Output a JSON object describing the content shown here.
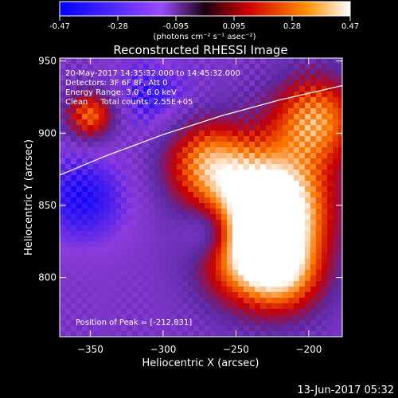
{
  "colorbar": {
    "ticks": [
      "-0.47",
      "-0.28",
      "-0.095",
      "0.095",
      "0.28",
      "0.47"
    ],
    "unit_label": "(photons cm⁻² s⁻¹ asec⁻²)",
    "range": [
      -0.47,
      0.47
    ]
  },
  "chart_data": {
    "type": "heatmap",
    "title": "Reconstructed RHESSI Image",
    "xlabel": "Heliocentric X (arcsec)",
    "ylabel": "Heliocentric Y (arcsec)",
    "xlim": [
      -371,
      -177
    ],
    "ylim": [
      759,
      952
    ],
    "x_ticks": [
      -350,
      -300,
      -250,
      -200
    ],
    "y_ticks": [
      800,
      850,
      900,
      950
    ],
    "info_lines": [
      "20-May-2017 14:35:32.000 to 14:45:32.000",
      "Detectors: 3F 6F 8F, Att 0",
      "Energy Range: 3.0 - 6.0 keV",
      "Clean     Total counts: 2.55E+05"
    ],
    "peak_label": "Position of Peak = [-212,831]",
    "peak": [
      -212,
      831
    ],
    "limb_curve": [
      [
        -371,
        871
      ],
      [
        -340,
        884
      ],
      [
        -300,
        899
      ],
      [
        -260,
        912
      ],
      [
        -220,
        923
      ],
      [
        -177,
        933
      ]
    ],
    "colormap": [
      "#0000ff",
      "#8c3cdc",
      "#5a28a0",
      "#c80000",
      "#ff7800",
      "#ffffff"
    ]
  },
  "footer_date": "13-Jun-2017 05:32"
}
